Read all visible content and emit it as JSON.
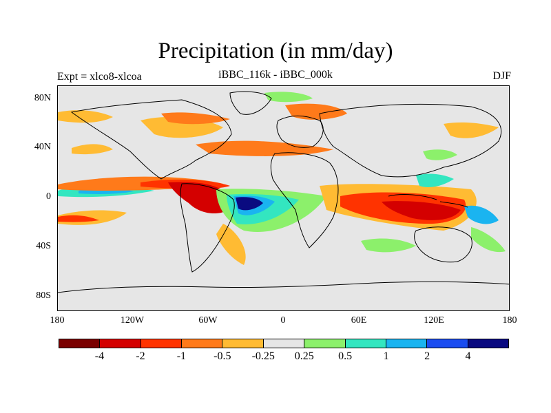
{
  "title": "Precipitation (in mm/day)",
  "subtitle_left": "Expt = xlco8-xlcoa",
  "subtitle_center": "iBBC_116k - iBBC_000k",
  "subtitle_right": "DJF",
  "lat_labels": [
    "80N",
    "40N",
    "0",
    "40S",
    "80S"
  ],
  "lon_labels": [
    "180",
    "120W",
    "60W",
    "0",
    "60E",
    "120E",
    "180"
  ],
  "colorbar": {
    "colors": [
      "#7a0000",
      "#d40000",
      "#ff3300",
      "#ff7a1a",
      "#ffbb33",
      "#e6e6e6",
      "#8cf06b",
      "#33e6c0",
      "#1ab4f0",
      "#1a4cf0",
      "#0a0a80"
    ],
    "labels": [
      "-4",
      "-2",
      "-1",
      "-0.5",
      "-0.25",
      "0.25",
      "0.5",
      "1",
      "2",
      "4"
    ]
  },
  "chart_data": {
    "type": "heatmap",
    "title": "Precipitation (in mm/day)",
    "variable": "Precipitation",
    "units": "mm/day",
    "season": "DJF",
    "xlim": [
      -180,
      180
    ],
    "ylim": [
      -90,
      90
    ],
    "levels": [
      -4,
      -2,
      -1,
      -0.5,
      -0.25,
      0.25,
      0.5,
      1,
      2,
      4
    ]
  }
}
